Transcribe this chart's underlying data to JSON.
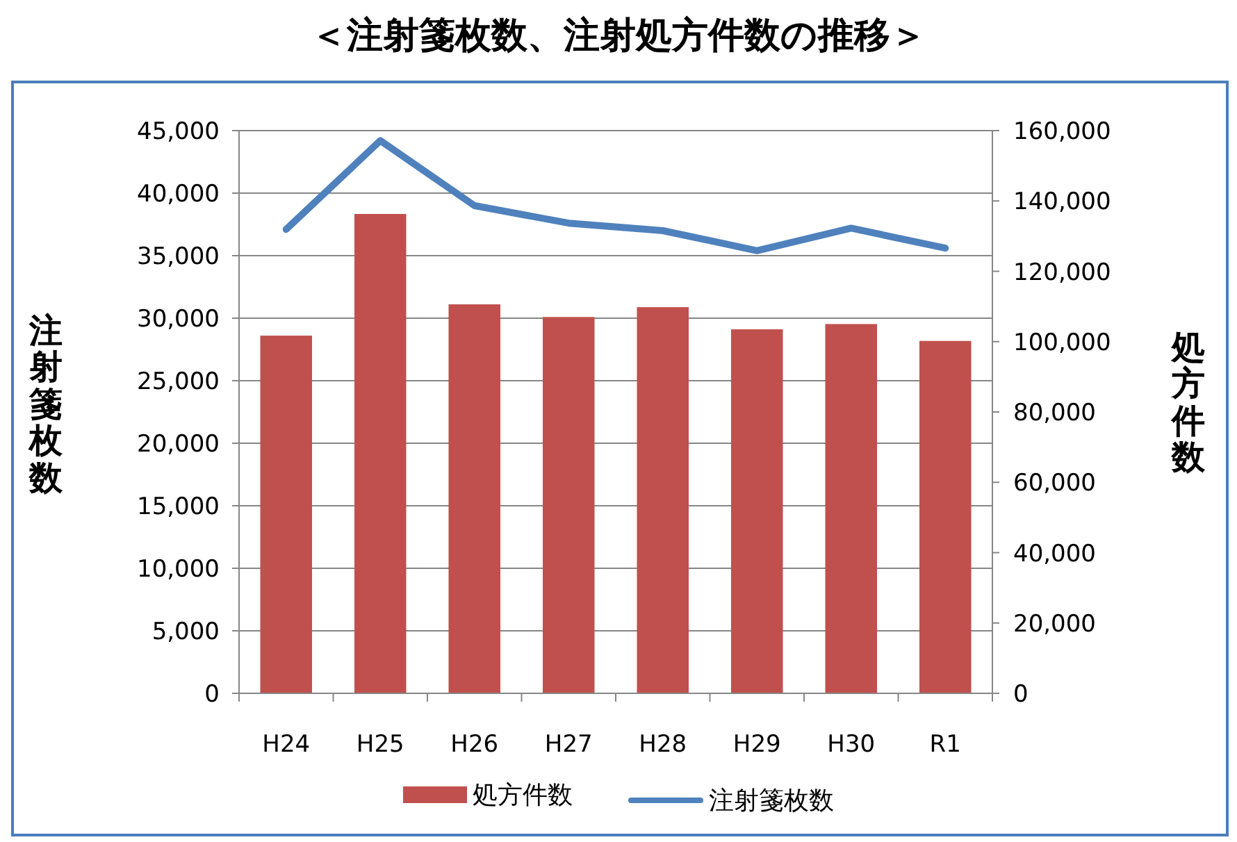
{
  "chart_data": {
    "type": "bar",
    "title": "＜注射箋枚数、注射処方件数の推移＞",
    "ylabel": "注射箋枚数",
    "y2label": "処方件数",
    "categories": [
      "H24",
      "H25",
      "H26",
      "H27",
      "H28",
      "H29",
      "H30",
      "R1"
    ],
    "series": [
      {
        "name": "処方件数",
        "axis": "y2",
        "color": "#c0504d",
        "values": [
          101700,
          136300,
          110600,
          107000,
          109800,
          103500,
          105000,
          100200
        ]
      },
      {
        "name": "注射箋枚数",
        "type": "line",
        "color": "#4f81bd",
        "values": [
          37100,
          44200,
          39000,
          37600,
          37000,
          35400,
          37200,
          35600
        ]
      }
    ],
    "ylim": [
      0,
      45000
    ],
    "yticks": [
      {
        "value": 0,
        "label": "0"
      },
      {
        "value": 5000,
        "label": "5,000"
      },
      {
        "value": 10000,
        "label": "10,000"
      },
      {
        "value": 15000,
        "label": "15,000"
      },
      {
        "value": 20000,
        "label": "20,000"
      },
      {
        "value": 25000,
        "label": "25,000"
      },
      {
        "value": 30000,
        "label": "30,000"
      },
      {
        "value": 35000,
        "label": "35,000"
      },
      {
        "value": 40000,
        "label": "40,000"
      },
      {
        "value": 45000,
        "label": "45,000"
      }
    ],
    "y2lim": [
      0,
      160000
    ],
    "y2ticks": [
      {
        "value": 0,
        "label": "0"
      },
      {
        "value": 20000,
        "label": "20,000"
      },
      {
        "value": 40000,
        "label": "40,000"
      },
      {
        "value": 60000,
        "label": "60,000"
      },
      {
        "value": 80000,
        "label": "80,000"
      },
      {
        "value": 100000,
        "label": "100,000"
      },
      {
        "value": 120000,
        "label": "120,000"
      },
      {
        "value": 140000,
        "label": "140,000"
      },
      {
        "value": 160000,
        "label": "160,000"
      }
    ],
    "grid": "y",
    "legend": "bottom",
    "marker": "none",
    "line_style": "solid"
  }
}
